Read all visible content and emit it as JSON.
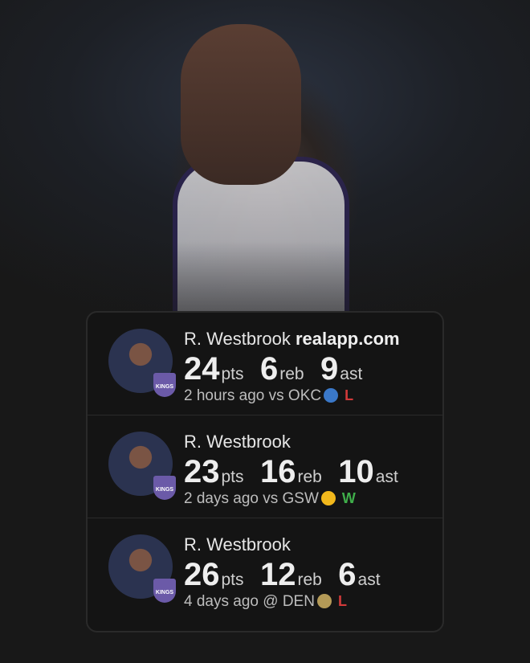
{
  "watermark": "realapp.com",
  "colors": {
    "loss": "#d23a3a",
    "win": "#3fae4a"
  },
  "games": [
    {
      "player": "R. Westbrook",
      "pts": "24",
      "reb": "6",
      "ast": "9",
      "when": "2 hours ago",
      "loc": "vs",
      "opp": "OKC",
      "opp_icon": "thunder-logo-icon",
      "result": "L",
      "logo_color": "#3a78c9"
    },
    {
      "player": "R. Westbrook",
      "pts": "23",
      "reb": "16",
      "ast": "10",
      "when": "2 days ago",
      "loc": "vs",
      "opp": "GSW",
      "opp_icon": "warriors-logo-icon",
      "result": "W",
      "logo_color": "#f2b81c"
    },
    {
      "player": "R. Westbrook",
      "pts": "26",
      "reb": "12",
      "ast": "6",
      "when": "4 days ago",
      "loc": "@",
      "opp": "DEN",
      "opp_icon": "nuggets-logo-icon",
      "result": "L",
      "logo_color": "#b49a57"
    }
  ],
  "units": {
    "pts": "pts",
    "reb": "reb",
    "ast": "ast"
  },
  "team_badge": "KINGS"
}
